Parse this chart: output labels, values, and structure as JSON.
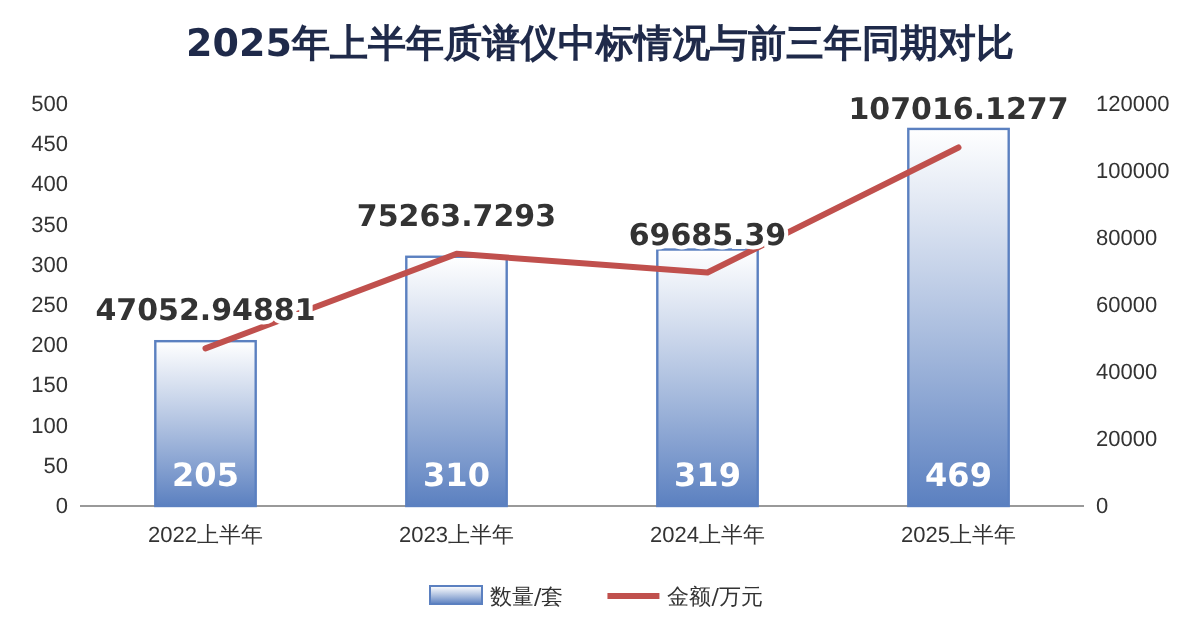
{
  "chart_data": {
    "type": "bar",
    "title": "2025年上半年质谱仪中标情况与前三年同期对比",
    "categories": [
      "2022上半年",
      "2023上半年",
      "2024上半年",
      "2025上半年"
    ],
    "series": [
      {
        "name": "数量/套",
        "color": "#5b80c0",
        "values": [
          205,
          310,
          319,
          469
        ]
      },
      {
        "name": "金额/万元",
        "type": "line",
        "axis": "y2",
        "color": "#c0504d",
        "values": [
          47052.94881,
          75263.7293,
          69685.39,
          107016.1277
        ]
      }
    ],
    "ylim": [
      0,
      500
    ],
    "yticks": [
      0,
      50,
      100,
      150,
      200,
      250,
      300,
      350,
      400,
      450,
      500
    ],
    "y2lim": [
      0,
      120000
    ],
    "y2ticks": [
      0,
      20000,
      40000,
      60000,
      80000,
      100000,
      120000
    ],
    "data_labels": true,
    "grid": false,
    "legend": "bottom",
    "marker": "none",
    "line_style": "solid"
  }
}
